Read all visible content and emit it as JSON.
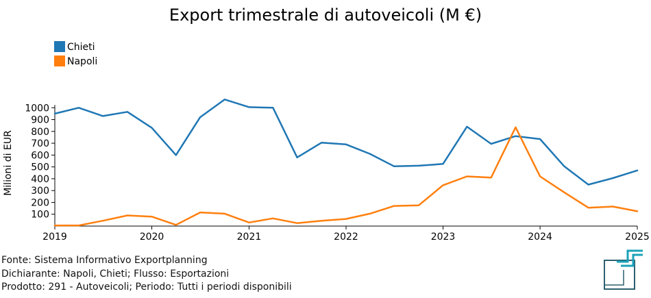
{
  "chart_data": {
    "type": "line",
    "title": "Export trimestrale di autoveicoli (M €)",
    "ylabel": "Milioni di EUR",
    "xlabel": "",
    "x_ticks": [
      "2019",
      "2020",
      "2021",
      "2022",
      "2023",
      "2024",
      "2025"
    ],
    "y_ticks": [
      100,
      200,
      300,
      400,
      500,
      600,
      700,
      800,
      900,
      1000
    ],
    "ylim": [
      0,
      1100
    ],
    "xlim": [
      "2019-01-01",
      "2025-01-01"
    ],
    "grid": false,
    "legend_position": "top-left",
    "x": [
      "2019-01-01",
      "2019-04-01",
      "2019-07-01",
      "2019-10-01",
      "2020-01-01",
      "2020-04-01",
      "2020-07-01",
      "2020-10-01",
      "2021-01-01",
      "2021-04-01",
      "2021-07-01",
      "2021-10-01",
      "2022-01-01",
      "2022-04-01",
      "2022-07-01",
      "2022-10-01",
      "2023-01-01",
      "2023-04-01",
      "2023-07-01",
      "2023-10-01",
      "2024-01-01",
      "2024-04-01",
      "2024-07-01",
      "2024-10-01",
      "2025-01-01"
    ],
    "series": [
      {
        "name": "Chieti",
        "color": "#1f77b4",
        "values": [
          950,
          1000,
          930,
          965,
          830,
          600,
          920,
          1070,
          1005,
          1000,
          580,
          705,
          690,
          610,
          505,
          510,
          525,
          840,
          695,
          760,
          735,
          505,
          350,
          405,
          470
        ]
      },
      {
        "name": "Napoli",
        "color": "#ff7f0e",
        "values": [
          5,
          5,
          45,
          90,
          80,
          10,
          115,
          105,
          30,
          65,
          25,
          45,
          60,
          105,
          170,
          175,
          345,
          420,
          410,
          835,
          420,
          285,
          155,
          165,
          125
        ]
      }
    ]
  },
  "footer": {
    "line1": "Fonte: Sistema Informativo Exportplanning",
    "line2": "Dichiarante: Napoli, Chieti; Flusso: Esportazioni",
    "line3": "Prodotto: 291 - Autoveicoli; Periodo: Tutti i periodi disponibili"
  },
  "logo": {
    "icon": "exportplanning-logo-icon",
    "color_dark": "#2b5f6f",
    "color_accent": "#1aa3b8"
  }
}
